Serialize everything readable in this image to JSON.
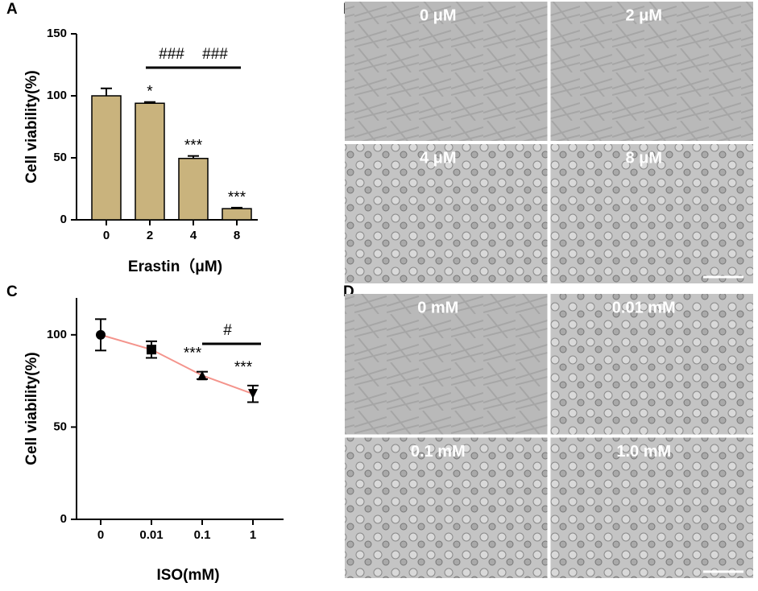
{
  "panel_labels": [
    "A",
    "B",
    "C",
    "D"
  ],
  "chart_data": [
    {
      "type": "bar",
      "ylabel": "Cell viability(%)",
      "xlabel": "Erastin（μM)",
      "categories": [
        "0",
        "2",
        "4",
        "8"
      ],
      "values": [
        100,
        94,
        49.5,
        9
      ],
      "errors": [
        6,
        1,
        2,
        0.8
      ],
      "color": "#c9b37d",
      "ylim": [
        0,
        150
      ],
      "yticks": [
        0,
        50,
        100,
        150
      ],
      "significance": [
        null,
        "*",
        "***",
        "***"
      ],
      "comparisons": [
        {
          "label": "###",
          "from": "2",
          "to": "4"
        },
        {
          "label": "###",
          "from": "4",
          "to": "8"
        }
      ]
    },
    {
      "type": "line",
      "ylabel": "Cell viability(%)",
      "xlabel": "ISO(mM)",
      "categories": [
        "0",
        "0.01",
        "0.1",
        "1"
      ],
      "values": [
        100,
        92,
        78,
        68
      ],
      "errors": [
        8.5,
        4.5,
        2,
        4.5
      ],
      "color": "#f4948c",
      "markers": [
        "circle",
        "square",
        "triangle",
        "triangle-down"
      ],
      "ylim": [
        0,
        120
      ],
      "yticks": [
        0,
        50,
        100
      ],
      "significance": [
        null,
        null,
        "***",
        "***"
      ],
      "comparisons": [
        {
          "label": "#",
          "from": "0.1",
          "to": "1"
        }
      ]
    }
  ],
  "image_panels": [
    {
      "labels": [
        "0 μM",
        "2 μM",
        "4 μM",
        "8 μM"
      ]
    },
    {
      "labels": [
        "0 mM",
        "0.01 mM",
        "0.1 mM",
        "1.0 mM"
      ]
    }
  ]
}
